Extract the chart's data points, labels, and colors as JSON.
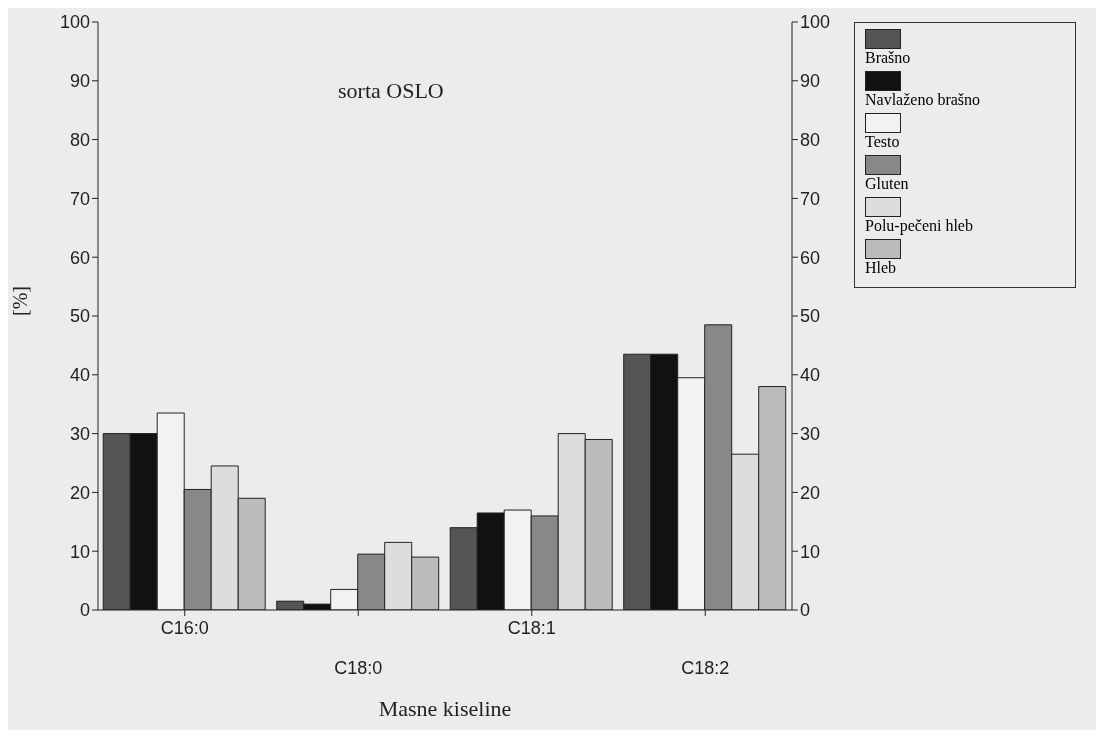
{
  "chart_data": {
    "type": "bar",
    "title": "sorta OSLO",
    "xlabel": "Masne kiseline",
    "ylabel": "[%]",
    "categories": [
      "C16:0",
      "C18:0",
      "C18:1",
      "C18:2"
    ],
    "series": [
      {
        "name": "Brašno",
        "color": "#555555",
        "values": [
          30,
          1.5,
          14,
          43.5
        ]
      },
      {
        "name": "Navlaženo brašno",
        "color": "#111111",
        "values": [
          30,
          1,
          16.5,
          43.5
        ]
      },
      {
        "name": "Testo",
        "color": "#f2f2f2",
        "values": [
          33.5,
          3.5,
          17,
          39.5
        ]
      },
      {
        "name": "Gluten",
        "color": "#888888",
        "values": [
          20.5,
          9.5,
          16,
          48.5
        ]
      },
      {
        "name": "Polu-pečeni hleb",
        "color": "#dddddd",
        "values": [
          24.5,
          11.5,
          30,
          26.5
        ]
      },
      {
        "name": "Hleb",
        "color": "#bbbbbb",
        "values": [
          19,
          9,
          29,
          38
        ]
      }
    ],
    "ylim": [
      0,
      100
    ],
    "yticks": [
      0,
      10,
      20,
      30,
      40,
      50,
      60,
      70,
      80,
      90,
      100
    ],
    "y2lim": [
      0,
      100
    ],
    "y2ticks": [
      0,
      10,
      20,
      30,
      40,
      50,
      60,
      70,
      80,
      90,
      100
    ],
    "grid": false,
    "legend": "right"
  }
}
